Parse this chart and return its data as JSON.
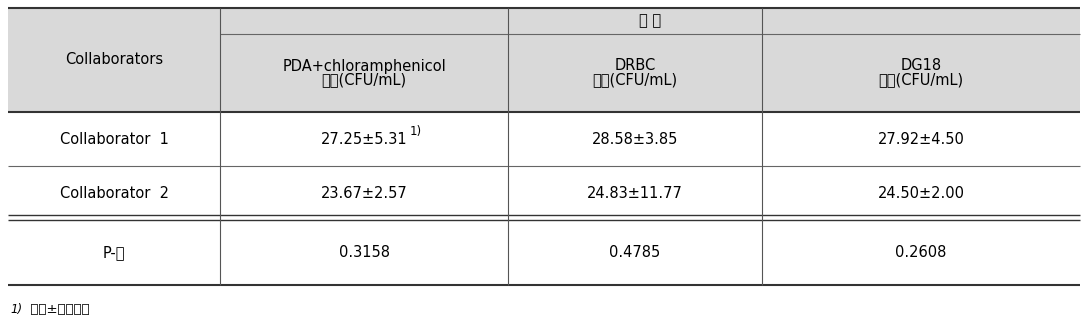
{
  "header_bg": "#d9d9d9",
  "white_bg": "#ffffff",
  "fig_bg": "#ffffff",
  "col0_header": "Collaborators",
  "group_header": "베 지",
  "col1_header_line1": "PDA+chloramphenicol",
  "col1_header_line2": "균수(CFU/mL)",
  "col2_header_line1": "DRBC",
  "col2_header_line2": "균수(CFU/mL)",
  "col3_header_line1": "DG18",
  "col3_header_line2": "균수(CFU/mL)",
  "row1_col0": "Collaborator  1",
  "row1_col1": "27.25±5.31",
  "row1_col1_sup": "1)",
  "row1_col2": "28.58±3.85",
  "row1_col3": "27.92±4.50",
  "row2_col0": "Collaborator  2",
  "row2_col1": "23.67±2.57",
  "row2_col2": "24.83±11.77",
  "row2_col3": "24.50±2.00",
  "row3_col0": "P-값",
  "row3_col1": "0.3158",
  "row3_col2": "0.4785",
  "row3_col3": "0.2608",
  "footnote_sup": "1)",
  "footnote_text": "  평균±표준편차",
  "font_size": 10.5,
  "font_size_small": 8.5,
  "font_size_footnote": 9.5
}
